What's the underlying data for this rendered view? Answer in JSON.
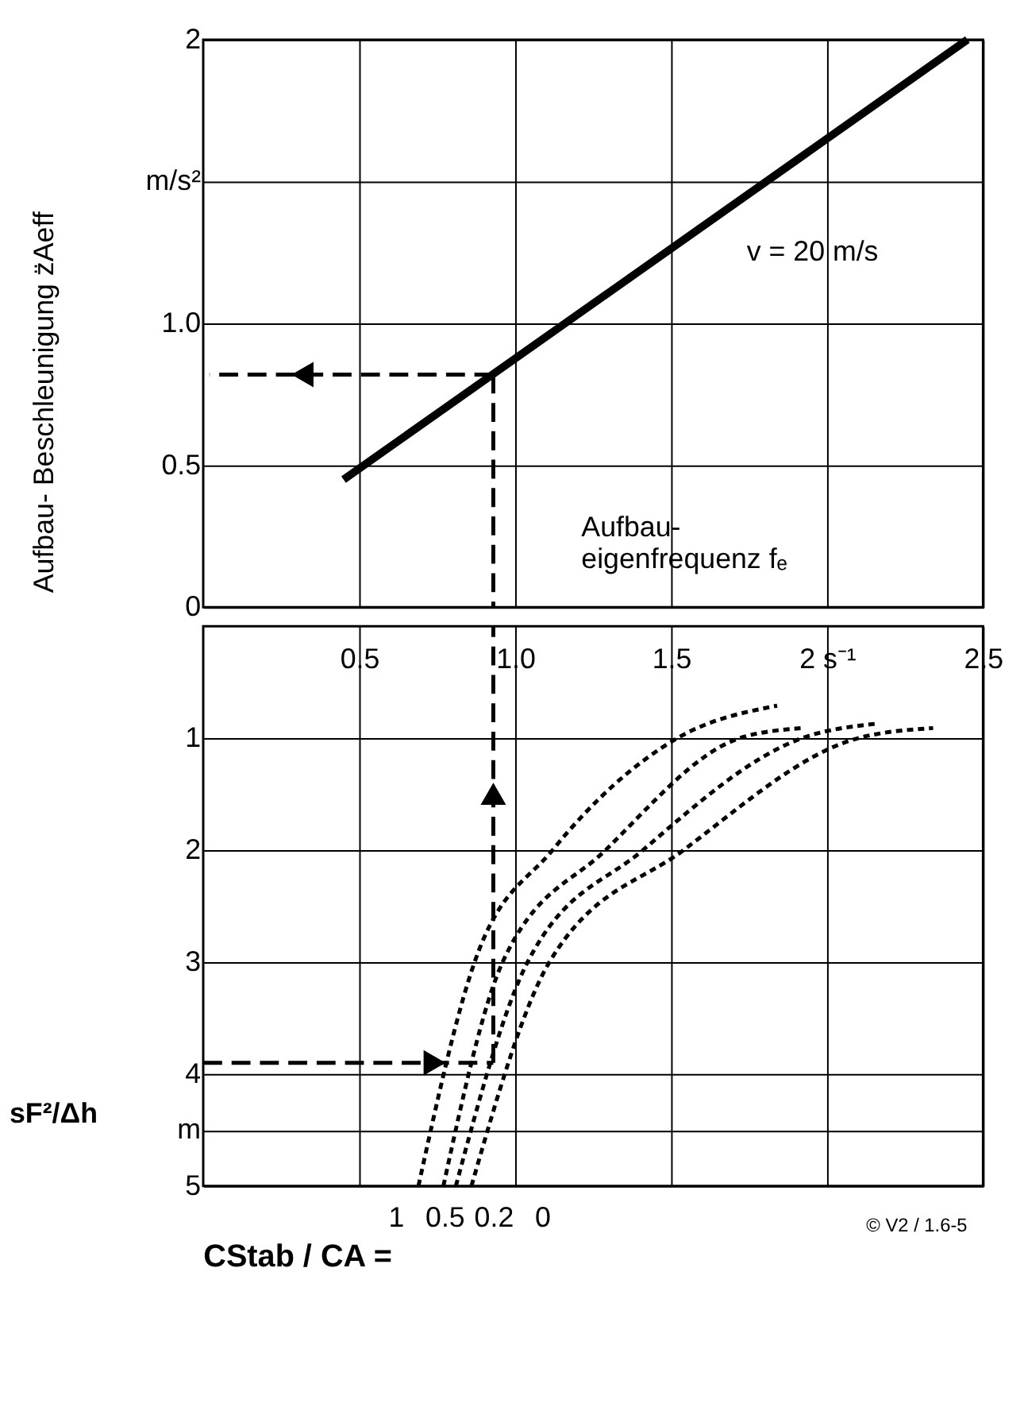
{
  "chart_data": [
    {
      "type": "line",
      "ylabel": "Aufbau- Beschleunigung z̈Aeff",
      "xlim": [
        0,
        2.5
      ],
      "ylim": [
        0,
        2
      ],
      "xticks": [
        0.5,
        1.0,
        1.5,
        2,
        2.5
      ],
      "yticks": [
        {
          "value": 0,
          "label": "0"
        },
        {
          "value": 0.5,
          "label": "0.5"
        },
        {
          "value": 1,
          "label": "1.0"
        },
        {
          "value": 1.5,
          "label": "m/s²"
        },
        {
          "value": 2,
          "label": "2"
        }
      ],
      "tick_labels": "y",
      "grid": true,
      "series": [
        {
          "color": "#000000",
          "x": [
            0.45,
            2.45
          ],
          "values": [
            0.45,
            2.0
          ],
          "line_style": "solid"
        },
        {
          "color": "#000000",
          "x": [
            0.93,
            0.02
          ],
          "values": [
            0.82,
            0.82
          ],
          "line_style": "dashed"
        },
        {
          "type": "scatter",
          "marker": "triangle",
          "color": "#000000",
          "x": [
            0.33
          ],
          "values": [
            0.82
          ]
        },
        {
          "color": "#000000",
          "x": [
            0.93,
            0.93
          ],
          "values": [
            0.82,
            0.0
          ],
          "line_style": "dashed"
        }
      ],
      "annotations": [
        "v  = 20 m/s",
        "Aufbau-\neigenfrequenz  fₑ"
      ]
    },
    {
      "type": "line",
      "ylabel": "sF²/Δh",
      "xlim": [
        0,
        2.5
      ],
      "ylim": [
        5,
        0
      ],
      "xticks": [
        0.5,
        {
          "value": 1,
          "label": "1.0"
        },
        1.5,
        {
          "value": 2,
          "label": "2  s⁻¹"
        },
        2.5
      ],
      "yticks": [
        1,
        2,
        3,
        4,
        {
          "value": 4.5,
          "label": "m"
        },
        5
      ],
      "grid": true,
      "series": [
        {
          "name": "1",
          "color": "#000000",
          "x": [
            0.69,
            0.87,
            1.12,
            1.52,
            1.84
          ],
          "values": [
            5,
            3,
            2,
            1,
            0.71
          ],
          "line_style": "dotted"
        },
        {
          "name": "0.5",
          "color": "#000000",
          "x": [
            0.77,
            0.96,
            1.29,
            1.72,
            1.92
          ],
          "values": [
            5,
            3,
            2,
            1,
            0.91
          ],
          "line_style": "dotted"
        },
        {
          "name": "0.2",
          "color": "#000000",
          "x": [
            0.81,
            1.04,
            1.41,
            1.92,
            2.16
          ],
          "values": [
            5,
            3,
            2,
            1,
            0.87
          ],
          "line_style": "dotted"
        },
        {
          "name": "0",
          "color": "#000000",
          "x": [
            0.86,
            1.11,
            1.54,
            2.1,
            2.34
          ],
          "values": [
            5,
            3,
            2,
            1,
            0.91
          ],
          "line_style": "dotted"
        },
        {
          "color": "#000000",
          "x": [
            0.93,
            0.93
          ],
          "values": [
            3.9,
            0.0
          ],
          "line_style": "dashed"
        },
        {
          "type": "scatter",
          "marker": "triangle",
          "color": "#000000",
          "x": [
            0.93
          ],
          "values": [
            1.53
          ]
        },
        {
          "color": "#000000",
          "x": [
            0.0,
            0.93
          ],
          "values": [
            3.9,
            3.9
          ],
          "line_style": "dashed"
        },
        {
          "type": "scatter",
          "marker": "triangle",
          "color": "#000000",
          "x": [
            0.73
          ],
          "values": [
            3.9
          ]
        }
      ],
      "annotations": [
        "CStab / CA =",
        "© V2 / 1.6-5"
      ]
    }
  ]
}
